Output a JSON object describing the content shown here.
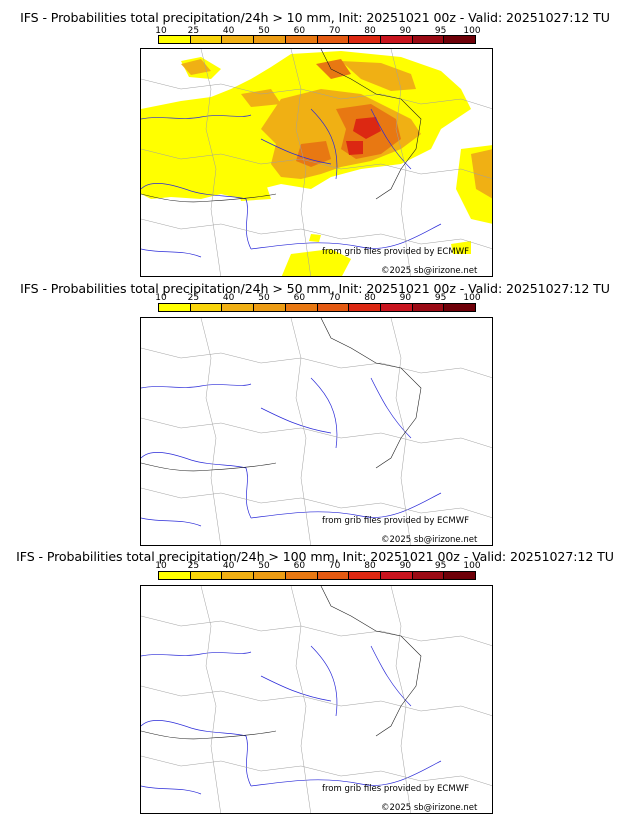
{
  "colorbar": {
    "ticks": [
      "10",
      "25",
      "40",
      "50",
      "60",
      "70",
      "80",
      "90",
      "95",
      "100"
    ],
    "colors": [
      "#ffff00",
      "#f8d40a",
      "#f0b014",
      "#ec9c14",
      "#e87812",
      "#e45a12",
      "#dc2812",
      "#c8141e",
      "#9a0a14",
      "#6e0008"
    ]
  },
  "panels": [
    {
      "title": "IFS - Probabilities total precipitation/24h > 10 mm, Init: 20251021 00z - Valid: 20251027:12 TU",
      "credit": "from grib files provided by ECMWF",
      "copyright": "©2025 sb@irizone.net"
    },
    {
      "title": "IFS - Probabilities total precipitation/24h > 50 mm, Init: 20251021 00z - Valid: 20251027:12 TU",
      "credit": "from grib files provided by ECMWF",
      "copyright": "©2025 sb@irizone.net"
    },
    {
      "title": "IFS - Probabilities total precipitation/24h > 100 mm, Init: 20251021 00z - Valid: 20251027:12 TU",
      "credit": "from grib files provided by ECMWF",
      "copyright": "©2025 sb@irizone.net"
    }
  ]
}
